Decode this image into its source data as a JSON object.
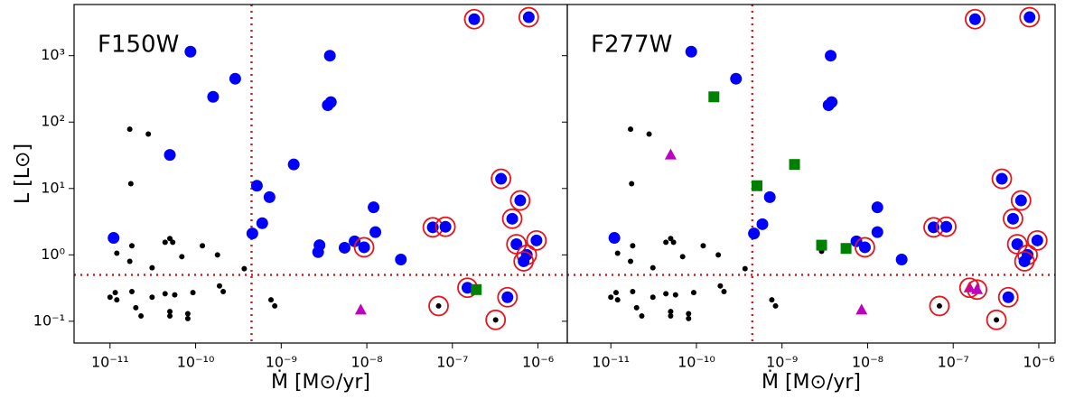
{
  "chart_data": [
    {
      "type": "scatter",
      "title": "F150W",
      "xlabel": "Ṁ [M⊙/yr]",
      "ylabel": "L [L⊙]",
      "xscale": "log",
      "yscale": "log",
      "xlim": [
        3.8e-12,
        2.2e-06
      ],
      "ylim": [
        0.047,
        5900
      ],
      "xticks": [
        {
          "value": 1e-11,
          "label": "10⁻¹¹"
        },
        {
          "value": 1e-10,
          "label": "10⁻¹⁰"
        },
        {
          "value": 1e-09,
          "label": "10⁻⁹"
        },
        {
          "value": 1e-08,
          "label": "10⁻⁸"
        },
        {
          "value": 1e-07,
          "label": "10⁻⁷"
        },
        {
          "value": 1e-06,
          "label": "10⁻⁶"
        }
      ],
      "yticks": [
        {
          "value": 0.1,
          "label": "10⁻¹"
        },
        {
          "value": 1,
          "label": "10⁰"
        },
        {
          "value": 10,
          "label": "10¹"
        },
        {
          "value": 100,
          "label": "10²"
        },
        {
          "value": 1000,
          "label": "10³"
        }
      ],
      "vline": 4.5e-10,
      "hline": 0.5,
      "line_color": "#e8141c",
      "series": [
        {
          "color": "#000000",
          "marker": "dot",
          "x": [
            1e-11,
            1.15e-11,
            1.2e-11,
            1.2e-11,
            1.7e-11,
            2.8e-11,
            1.75e-11,
            1.8e-11,
            1.7e-11,
            3.1e-11,
            4.4e-11,
            5e-11,
            5.4e-11,
            6.9e-11,
            1.2e-10,
            1.8e-10,
            3.7e-10,
            1.8e-11,
            2e-11,
            2.3e-11,
            3.1e-11,
            4.4e-11,
            5e-11,
            5e-11,
            5.7e-11,
            8.1e-11,
            8.1e-11,
            9.3e-11,
            1.9e-10,
            2.1e-10,
            7.6e-10,
            8.4e-10
          ],
          "values": [
            0.23,
            0.27,
            0.21,
            1.06,
            78,
            66,
            11.8,
            1.37,
            0.8,
            0.64,
            1.55,
            1.76,
            1.55,
            0.94,
            1.37,
            1.0,
            0.62,
            0.28,
            0.16,
            0.12,
            0.23,
            0.26,
            0.14,
            0.12,
            0.25,
            0.13,
            0.11,
            0.27,
            0.34,
            0.28,
            0.21,
            0.17
          ]
        },
        {
          "color": "#0000ff",
          "marker": "circle",
          "x": [
            1.1e-11,
            8.7e-11,
            1.6e-10,
            2.9e-10,
            5e-11,
            4.6e-10,
            5.2e-10,
            6e-10,
            7.3e-10,
            1.4e-09,
            3.7e-09,
            3.5e-09,
            3.8e-09,
            2.7e-09,
            2.8e-09,
            5.5e-09,
            7.2e-09,
            1.2e-08,
            1.26e-08,
            2.5e-08
          ],
          "values": [
            1.8,
            1150,
            240,
            450,
            32,
            2.1,
            11,
            3.0,
            7.4,
            23,
            1000,
            180,
            200,
            1.1,
            1.4,
            1.28,
            1.6,
            5.2,
            2.2,
            0.85
          ]
        },
        {
          "color": "#0000ff",
          "marker": "circle",
          "ring": "#e8141c",
          "x": [
            9.3e-09,
            5.9e-08,
            8.3e-08,
            1.8e-07,
            7.8e-07,
            3.7e-07,
            6.2e-07,
            5e-07,
            5.6e-07,
            7.4e-07,
            6.8e-07,
            9.6e-07,
            4.4e-07,
            1.5e-07
          ],
          "values": [
            1.3,
            2.6,
            2.65,
            3550,
            3800,
            14,
            6.6,
            3.5,
            1.45,
            1.0,
            0.8,
            1.65,
            0.23,
            0.32
          ]
        },
        {
          "color": "#000000",
          "marker": "dot",
          "ring": "#e8141c",
          "x": [
            6.9e-08,
            3.2e-07
          ],
          "values": [
            0.17,
            0.105
          ]
        },
        {
          "color": "#008000",
          "marker": "square",
          "x": [
            1.9e-07
          ],
          "values": [
            0.3
          ]
        },
        {
          "color": "#c000c0",
          "marker": "triangle",
          "x": [
            8.5e-09
          ],
          "values": [
            0.148
          ]
        }
      ]
    },
    {
      "type": "scatter",
      "title": "F277W",
      "xlabel": "Ṁ [M⊙/yr]",
      "xscale": "log",
      "yscale": "log",
      "xlim": [
        3.1e-12,
        1.55e-06
      ],
      "ylim": [
        0.047,
        5900
      ],
      "xticks": [
        {
          "value": 1e-11,
          "label": "10⁻¹¹"
        },
        {
          "value": 1e-10,
          "label": "10⁻¹⁰"
        },
        {
          "value": 1e-09,
          "label": "10⁻⁹"
        },
        {
          "value": 1e-08,
          "label": "10⁻⁸"
        },
        {
          "value": 1e-07,
          "label": "10⁻⁷"
        },
        {
          "value": 1e-06,
          "label": "10⁻⁶"
        }
      ],
      "vline": 4.5e-10,
      "hline": 0.5,
      "line_color": "#e8141c",
      "series": [
        {
          "color": "#000000",
          "marker": "dot",
          "x": [
            1e-11,
            1.15e-11,
            1.2e-11,
            1.2e-11,
            1.7e-11,
            2.8e-11,
            1.75e-11,
            1.8e-11,
            1.7e-11,
            3.1e-11,
            4.4e-11,
            5e-11,
            5.4e-11,
            6.9e-11,
            1.2e-10,
            1.8e-10,
            3.7e-10,
            1.8e-11,
            2e-11,
            2.3e-11,
            3.1e-11,
            4.4e-11,
            5e-11,
            5e-11,
            5.7e-11,
            8.1e-11,
            8.1e-11,
            9.3e-11,
            1.9e-10,
            2.1e-10,
            7.6e-10,
            8.4e-10,
            2.9e-09
          ],
          "values": [
            0.23,
            0.27,
            0.21,
            1.06,
            78,
            66,
            11.8,
            1.37,
            0.8,
            0.64,
            1.55,
            1.76,
            1.55,
            0.94,
            1.37,
            1.0,
            0.62,
            0.28,
            0.16,
            0.12,
            0.23,
            0.26,
            0.14,
            0.12,
            0.25,
            0.13,
            0.11,
            0.27,
            0.34,
            0.28,
            0.21,
            0.17,
            1.13
          ]
        },
        {
          "color": "#0000ff",
          "marker": "circle",
          "x": [
            1.1e-11,
            8.7e-11,
            2.9e-10,
            4.7e-10,
            5.9e-10,
            7.2e-10,
            3.7e-09,
            3.5e-09,
            3.8e-09,
            7.4e-09,
            1.3e-08,
            1.3e-08,
            2.5e-08
          ],
          "values": [
            1.8,
            1150,
            450,
            2.1,
            2.9,
            7.4,
            1000,
            180,
            200,
            1.6,
            5.2,
            2.2,
            0.85
          ]
        },
        {
          "color": "#008000",
          "marker": "square",
          "x": [
            1.6e-10,
            5.1e-10,
            1.4e-09,
            2.9e-09,
            5.6e-09
          ],
          "values": [
            240,
            11,
            23,
            1.4,
            1.25
          ]
        },
        {
          "color": "#c000c0",
          "marker": "triangle",
          "x": [
            5e-11,
            8.5e-09
          ],
          "values": [
            32,
            0.148
          ]
        },
        {
          "color": "#0000ff",
          "marker": "circle",
          "ring": "#e8141c",
          "x": [
            9.3e-09,
            5.9e-08,
            8.3e-08,
            1.8e-07,
            7.8e-07,
            3.7e-07,
            6.2e-07,
            5e-07,
            5.6e-07,
            7.4e-07,
            6.8e-07,
            9.6e-07,
            4.4e-07
          ],
          "values": [
            1.3,
            2.6,
            2.65,
            3550,
            3800,
            14,
            6.6,
            3.5,
            1.45,
            1.0,
            0.8,
            1.65,
            0.23
          ]
        },
        {
          "color": "#000000",
          "marker": "dot",
          "ring": "#e8141c",
          "x": [
            6.9e-08,
            3.2e-07
          ],
          "values": [
            0.17,
            0.105
          ]
        },
        {
          "color": "#c000c0",
          "marker": "triangle",
          "ring": "#e8141c",
          "x": [
            1.55e-07,
            1.9e-07
          ],
          "values": [
            0.32,
            0.3
          ]
        }
      ]
    }
  ]
}
